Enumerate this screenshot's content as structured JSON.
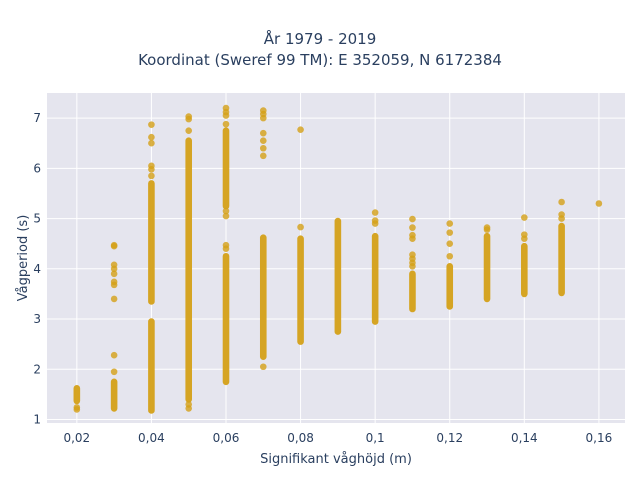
{
  "chart_data": {
    "type": "scatter",
    "title": "År 1979 - 2019",
    "subtitle": "Koordinat (Sweref 99 TM): E 352059, N 6172384",
    "xlabel": "Signifikant våghöjd (m)",
    "ylabel": "Vågperiod (s)",
    "xlim": [
      0.012,
      0.167
    ],
    "ylim": [
      0.93,
      7.5
    ],
    "xticks": [
      {
        "value": 0.02,
        "label": "0,02"
      },
      {
        "value": 0.04,
        "label": "0,04"
      },
      {
        "value": 0.06,
        "label": "0,06"
      },
      {
        "value": 0.08,
        "label": "0,08"
      },
      {
        "value": 0.1,
        "label": "0,1"
      },
      {
        "value": 0.12,
        "label": "0,12"
      },
      {
        "value": 0.14,
        "label": "0,14"
      },
      {
        "value": 0.16,
        "label": "0,16"
      }
    ],
    "yticks": [
      {
        "value": 1,
        "label": "1"
      },
      {
        "value": 2,
        "label": "2"
      },
      {
        "value": 3,
        "label": "3"
      },
      {
        "value": 4,
        "label": "4"
      },
      {
        "value": 5,
        "label": "5"
      },
      {
        "value": 6,
        "label": "6"
      },
      {
        "value": 7,
        "label": "7"
      }
    ],
    "grid": true,
    "marker_color": "#d4a017",
    "plot_background": "#e5e5ee",
    "series": [
      {
        "x": 0.02,
        "ranges": [
          [
            1.37,
            1.62
          ]
        ],
        "points": [
          1.2,
          1.24
        ]
      },
      {
        "x": 0.03,
        "ranges": [
          [
            1.22,
            1.75
          ]
        ],
        "points": [
          1.95,
          2.28,
          3.4,
          3.68,
          3.74,
          3.9,
          4.0,
          4.08,
          4.45,
          4.47
        ]
      },
      {
        "x": 0.04,
        "ranges": [
          [
            1.18,
            2.95
          ],
          [
            3.35,
            5.7
          ]
        ],
        "points": [
          5.85,
          5.98,
          6.05,
          6.5,
          6.62,
          6.87
        ]
      },
      {
        "x": 0.05,
        "ranges": [
          [
            1.4,
            6.55
          ]
        ],
        "points": [
          1.22,
          1.3,
          6.75,
          6.98,
          7.03
        ]
      },
      {
        "x": 0.06,
        "ranges": [
          [
            1.75,
            4.25
          ],
          [
            5.25,
            6.75
          ]
        ],
        "points": [
          4.4,
          4.47,
          5.05,
          5.15,
          6.88,
          7.05,
          7.12,
          7.2
        ]
      },
      {
        "x": 0.07,
        "ranges": [
          [
            2.25,
            4.62
          ]
        ],
        "points": [
          2.05,
          6.25,
          6.4,
          6.55,
          6.7,
          7.0,
          7.08,
          7.15
        ]
      },
      {
        "x": 0.08,
        "ranges": [
          [
            2.55,
            4.6
          ]
        ],
        "points": [
          4.83,
          6.77
        ]
      },
      {
        "x": 0.09,
        "ranges": [
          [
            2.75,
            4.95
          ]
        ],
        "points": []
      },
      {
        "x": 0.1,
        "ranges": [
          [
            2.95,
            4.65
          ]
        ],
        "points": [
          4.9,
          4.96,
          5.12
        ]
      },
      {
        "x": 0.11,
        "ranges": [
          [
            3.2,
            3.9
          ]
        ],
        "points": [
          4.05,
          4.12,
          4.2,
          4.28,
          4.6,
          4.67,
          4.82,
          4.99
        ]
      },
      {
        "x": 0.12,
        "ranges": [
          [
            3.25,
            4.05
          ]
        ],
        "points": [
          4.25,
          4.5,
          4.72,
          4.9
        ]
      },
      {
        "x": 0.13,
        "ranges": [
          [
            3.4,
            4.65
          ]
        ],
        "points": [
          4.78,
          4.82
        ]
      },
      {
        "x": 0.14,
        "ranges": [
          [
            3.5,
            4.45
          ]
        ],
        "points": [
          4.6,
          4.68,
          5.02
        ]
      },
      {
        "x": 0.15,
        "ranges": [
          [
            3.52,
            4.85
          ]
        ],
        "points": [
          5.0,
          5.08,
          5.33
        ]
      },
      {
        "x": 0.16,
        "ranges": [],
        "points": [
          5.3
        ]
      }
    ]
  }
}
